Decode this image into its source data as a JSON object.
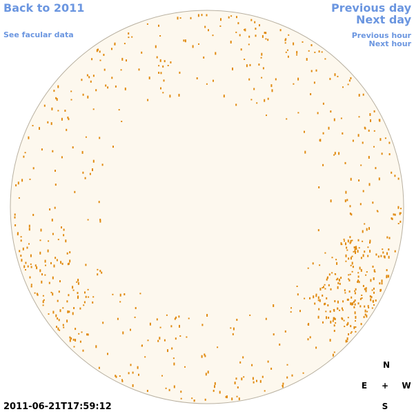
{
  "nav": {
    "back": "Back to 2011",
    "facular": "See facular data",
    "previous_day": "Previous day",
    "next_day": "Next day",
    "previous_hour": "Previous hour",
    "next_hour": "Next hour"
  },
  "timestamp": "2011-06-21T17:59:12",
  "compass": {
    "north": "N",
    "east": "E",
    "center": "+",
    "west": "W",
    "south": "S"
  }
}
